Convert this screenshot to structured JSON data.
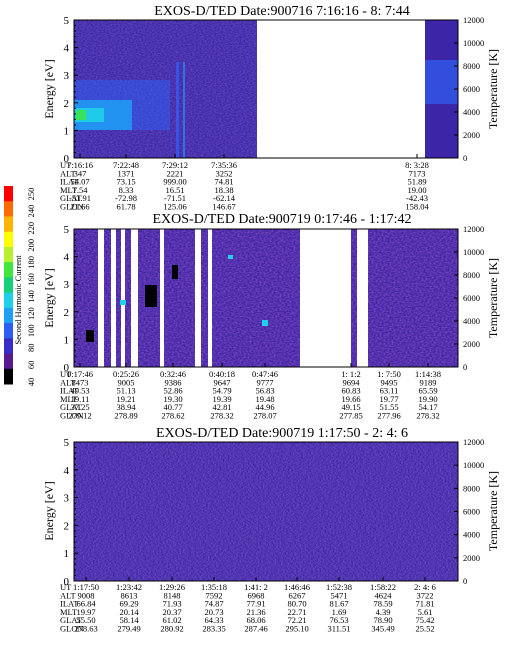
{
  "colors": {
    "background": "#ffffff",
    "spectrogram_base": "#3d25a8",
    "colorbar": [
      "#000000",
      "#5a1b8f",
      "#3a2cc8",
      "#2f5ef2",
      "#1f9ff6",
      "#20d0e8",
      "#15d27a",
      "#3fe63f",
      "#b8f030",
      "#ffff00",
      "#ffb400",
      "#ff6a00",
      "#ff0000"
    ]
  },
  "colorbar": {
    "label": "Second Harmonic Current",
    "ticks": [
      "40",
      "60",
      "80",
      "100",
      "120",
      "140",
      "160",
      "180",
      "200",
      "220",
      "240",
      "250"
    ]
  },
  "chart_data": [
    {
      "type": "heatmap",
      "title": "EXOS-D/TED   Date:900716   7:16:16 - 8: 7:44",
      "ylabel": "Energy [eV]",
      "ylabel_right": "Temperature [K]",
      "ylim": [
        0,
        5
      ],
      "ylim_right": [
        0,
        12000
      ],
      "yticks": [
        "0",
        "1",
        "2",
        "3",
        "4",
        "5"
      ],
      "yticks_right": [
        "0",
        "2000",
        "4000",
        "6000",
        "8000",
        "10000",
        "12000"
      ],
      "info_labels": [
        "UT",
        "ALT",
        "ILAT",
        "MLT",
        "GLAT",
        "GLON"
      ],
      "columns": [
        {
          "UT": "7:16:16",
          "ALT": "347",
          "ILAT": "54.07",
          "MLT": "7.54",
          "GLAT": "-51.91",
          "GLON": "21.66"
        },
        {
          "UT": "7:22:48",
          "ALT": "1371",
          "ILAT": "73.15",
          "MLT": "8.33",
          "GLAT": "-72.98",
          "GLON": "61.78"
        },
        {
          "UT": "7:29:12",
          "ALT": "2221",
          "ILAT": "999.00",
          "MLT": "16.51",
          "GLAT": "-71.51",
          "GLON": "125.06"
        },
        {
          "UT": "7:35:36",
          "ALT": "3252",
          "ILAT": "74.81",
          "MLT": "18.38",
          "GLAT": "-62.14",
          "GLON": "146.67"
        },
        {
          "UT": "8: 3:28",
          "ALT": "7173",
          "ILAT": "51.89",
          "MLT": "19.00",
          "GLAT": "-42.43",
          "GLON": "158.04"
        }
      ]
    },
    {
      "type": "heatmap",
      "title": "EXOS-D/TED   Date:900719   0:17:46 - 1:17:42",
      "ylabel": "Energy [eV]",
      "ylabel_right": "Temperature [K]",
      "ylim": [
        0,
        5
      ],
      "ylim_right": [
        0,
        12000
      ],
      "yticks": [
        "0",
        "1",
        "2",
        "3",
        "4",
        "5"
      ],
      "yticks_right": [
        "0",
        "2000",
        "4000",
        "6000",
        "8000",
        "10000",
        "12000"
      ],
      "info_labels": [
        "UT",
        "ALT",
        "ILAT",
        "MLT",
        "GLAT",
        "GLON"
      ],
      "columns": [
        {
          "UT": "0:17:46",
          "ALT": "8473",
          "ILAT": "49.53",
          "MLT": "19.11",
          "GLAT": "37.25",
          "GLON": "279.12"
        },
        {
          "UT": "0:25:26",
          "ALT": "9005",
          "ILAT": "51.13",
          "MLT": "19.21",
          "GLAT": "38.94",
          "GLON": "278.89"
        },
        {
          "UT": "0:32:46",
          "ALT": "9386",
          "ILAT": "52.86",
          "MLT": "19.30",
          "GLAT": "40.77",
          "GLON": "278.62"
        },
        {
          "UT": "0:40:18",
          "ALT": "9647",
          "ILAT": "54.79",
          "MLT": "19.39",
          "GLAT": "42.81",
          "GLON": "278.32"
        },
        {
          "UT": "0:47:46",
          "ALT": "9777",
          "ILAT": "56.83",
          "MLT": "19.48",
          "GLAT": "44.96",
          "GLON": "278.07"
        },
        {
          "UT": "1: 1:2",
          "ALT": "9694",
          "ILAT": "60.83",
          "MLT": "19.66",
          "GLAT": "49.15",
          "GLON": "277.85"
        },
        {
          "UT": "1: 7:50",
          "ALT": "9495",
          "ILAT": "63.11",
          "MLT": "19.77",
          "GLAT": "51.55",
          "GLON": "277.96"
        },
        {
          "UT": "1:14:38",
          "ALT": "9189",
          "ILAT": "65.59",
          "MLT": "19.90",
          "GLAT": "54.17",
          "GLON": "278.32"
        }
      ]
    },
    {
      "type": "heatmap",
      "title": "EXOS-D/TED   Date:900719   1:17:50 - 2: 4: 6",
      "ylabel": "Energy [eV]",
      "ylabel_right": "Temperature [K]",
      "ylim": [
        0,
        5
      ],
      "ylim_right": [
        0,
        12000
      ],
      "yticks": [
        "0",
        "1",
        "2",
        "3",
        "4",
        "5"
      ],
      "yticks_right": [
        "0",
        "2000",
        "4000",
        "6000",
        "8000",
        "10000",
        "12000"
      ],
      "info_labels": [
        "UT",
        "ALT",
        "ILAT",
        "MLT",
        "GLAT",
        "GLON"
      ],
      "columns": [
        {
          "UT": "1:17:50",
          "ALT": "9008",
          "ILAT": "66.84",
          "MLT": "19.97",
          "GLAT": "55.50",
          "GLON": "278.63"
        },
        {
          "UT": "1:23:42",
          "ALT": "8613",
          "ILAT": "69.29",
          "MLT": "20.14",
          "GLAT": "58.14",
          "GLON": "279.49"
        },
        {
          "UT": "1:29:26",
          "ALT": "8148",
          "ILAT": "71.93",
          "MLT": "20.37",
          "GLAT": "61.02",
          "GLON": "280.92"
        },
        {
          "UT": "1:35:18",
          "ALT": "7592",
          "ILAT": "74.87",
          "MLT": "20.73",
          "GLAT": "64.33",
          "GLON": "283.35"
        },
        {
          "UT": "1:41: 2",
          "ALT": "6968",
          "ILAT": "77.91",
          "MLT": "21.36",
          "GLAT": "68.06",
          "GLON": "287.46"
        },
        {
          "UT": "1:46:46",
          "ALT": "6267",
          "ILAT": "80.70",
          "MLT": "22.71",
          "GLAT": "72.21",
          "GLON": "295.10"
        },
        {
          "UT": "1:52:38",
          "ALT": "5471",
          "ILAT": "81.67",
          "MLT": "1.69",
          "GLAT": "76.53",
          "GLON": "311.51"
        },
        {
          "UT": "1:58:22",
          "ALT": "4624",
          "ILAT": "78.59",
          "MLT": "4.39",
          "GLAT": "78.90",
          "GLON": "345.49"
        },
        {
          "UT": "2: 4: 6",
          "ALT": "3722",
          "ILAT": "71.81",
          "MLT": "5.61",
          "GLAT": "75.42",
          "GLON": "25.52"
        }
      ]
    }
  ]
}
